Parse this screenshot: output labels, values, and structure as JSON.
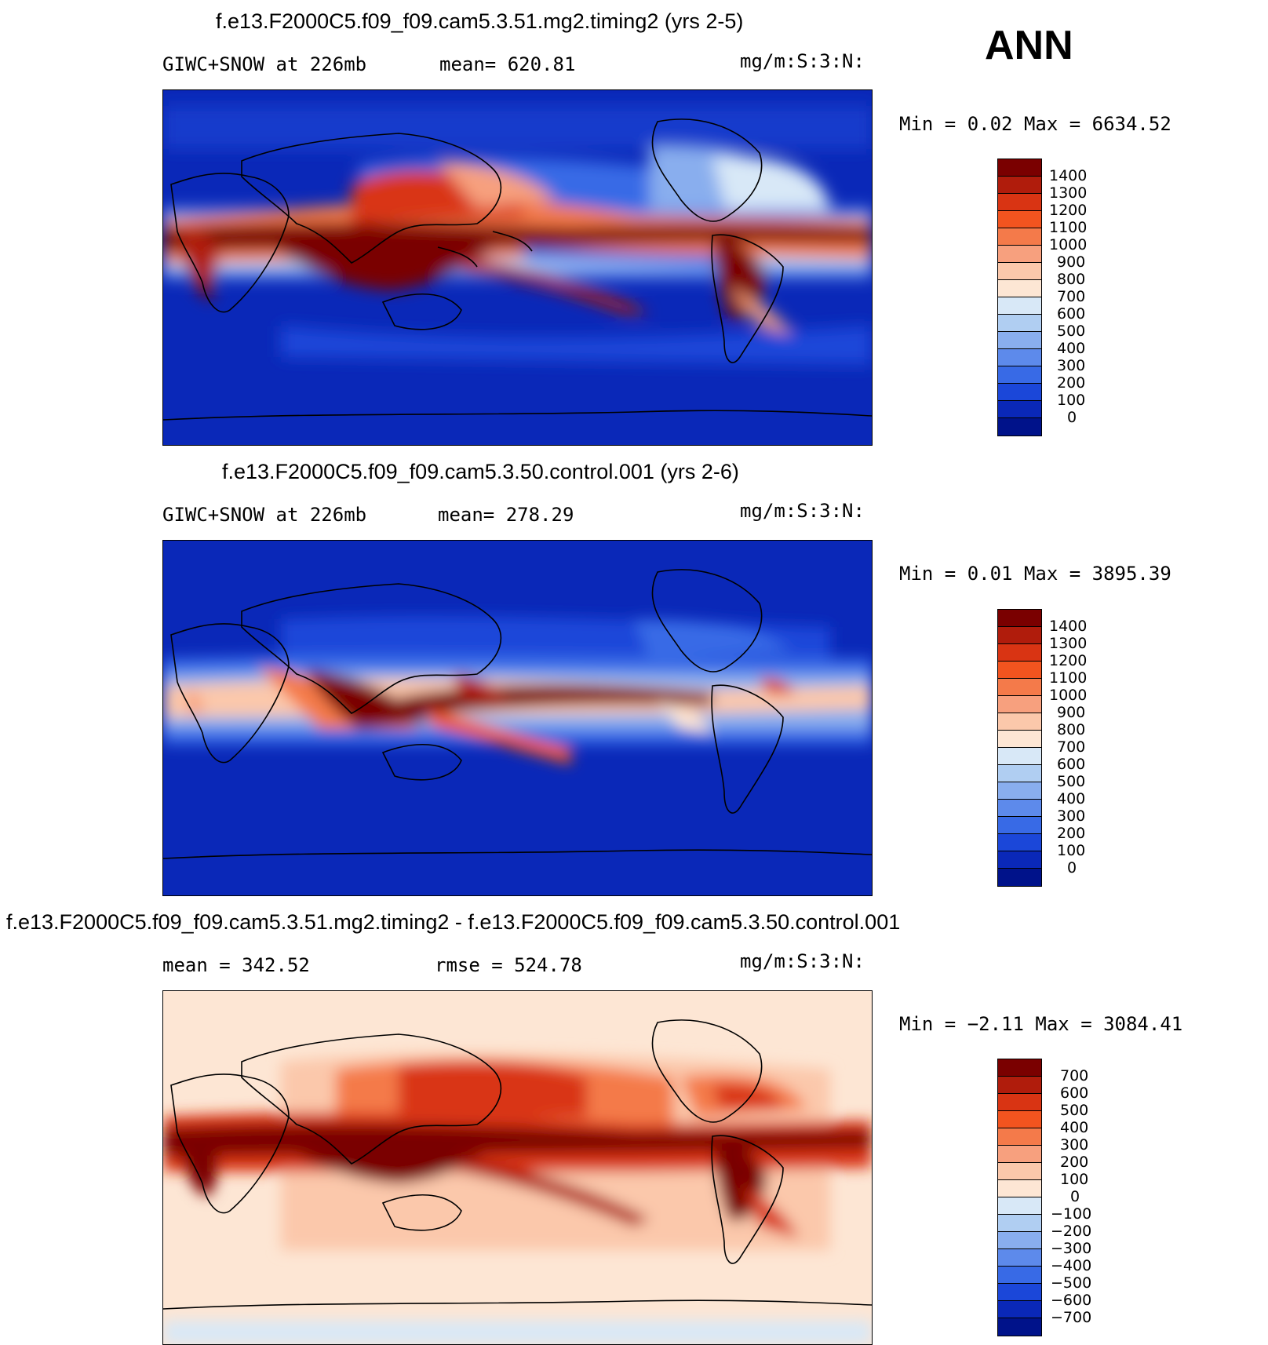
{
  "season": "ANN",
  "panels": [
    {
      "id": "model",
      "title": "f.e13.F2000C5.f09_f09.cam5.3.51.mg2.timing2 (yrs 2-5)",
      "left_label": "GIWC+SNOW at 226mb",
      "mean_label": "mean= 620.81",
      "units": "mg/m:S:3:N:",
      "minmax": "Min =    0.02 Max = 6634.52",
      "colorbar_labels": [
        "1400",
        "1300",
        "1200",
        "1100",
        "1000",
        "900",
        "800",
        "700",
        "600",
        "500",
        "400",
        "300",
        "200",
        "100",
        "0"
      ],
      "colorbar_colors": [
        "#7a0000",
        "#b01c0c",
        "#d93413",
        "#f2541f",
        "#f47a4a",
        "#f7a07e",
        "#fbc8ab",
        "#fde6d4",
        "#d8e8f7",
        "#b0cef2",
        "#89aeee",
        "#5d8aeb",
        "#386ae6",
        "#1b47d9",
        "#0a28b8",
        "#00128a"
      ]
    },
    {
      "id": "control",
      "title": "f.e13.F2000C5.f09_f09.cam5.3.50.control.001 (yrs 2-6)",
      "left_label": "GIWC+SNOW at 226mb",
      "mean_label": "mean= 278.29",
      "units": "mg/m:S:3:N:",
      "minmax": "Min =    0.01 Max = 3895.39",
      "colorbar_labels": [
        "1400",
        "1300",
        "1200",
        "1100",
        "1000",
        "900",
        "800",
        "700",
        "600",
        "500",
        "400",
        "300",
        "200",
        "100",
        "0"
      ],
      "colorbar_colors": [
        "#7a0000",
        "#b01c0c",
        "#d93413",
        "#f2541f",
        "#f47a4a",
        "#f7a07e",
        "#fbc8ab",
        "#fde6d4",
        "#d8e8f7",
        "#b0cef2",
        "#89aeee",
        "#5d8aeb",
        "#386ae6",
        "#1b47d9",
        "#0a28b8",
        "#00128a"
      ]
    },
    {
      "id": "diff",
      "title": "f.e13.F2000C5.f09_f09.cam5.3.51.mg2.timing2 - f.e13.F2000C5.f09_f09.cam5.3.50.control.001",
      "left_label": "mean = 342.52",
      "mean_label": "rmse = 524.78",
      "units": "mg/m:S:3:N:",
      "minmax": "Min =   −2.11 Max = 3084.41",
      "colorbar_labels": [
        "700",
        "600",
        "500",
        "400",
        "300",
        "200",
        "100",
        "0",
        "−100",
        "−200",
        "−300",
        "−400",
        "−500",
        "−600",
        "−700"
      ],
      "colorbar_colors": [
        "#7a0000",
        "#b01c0c",
        "#d93413",
        "#f2541f",
        "#f47a4a",
        "#f7a07e",
        "#fbc8ab",
        "#fde6d4",
        "#d8e8f7",
        "#b0cef2",
        "#89aeee",
        "#5d8aeb",
        "#386ae6",
        "#1b47d9",
        "#0a28b8",
        "#00128a"
      ]
    }
  ],
  "colors": {
    "background_blue": "#0a28b8",
    "background_diff": "#fde6d4",
    "coastline": "#000000"
  }
}
